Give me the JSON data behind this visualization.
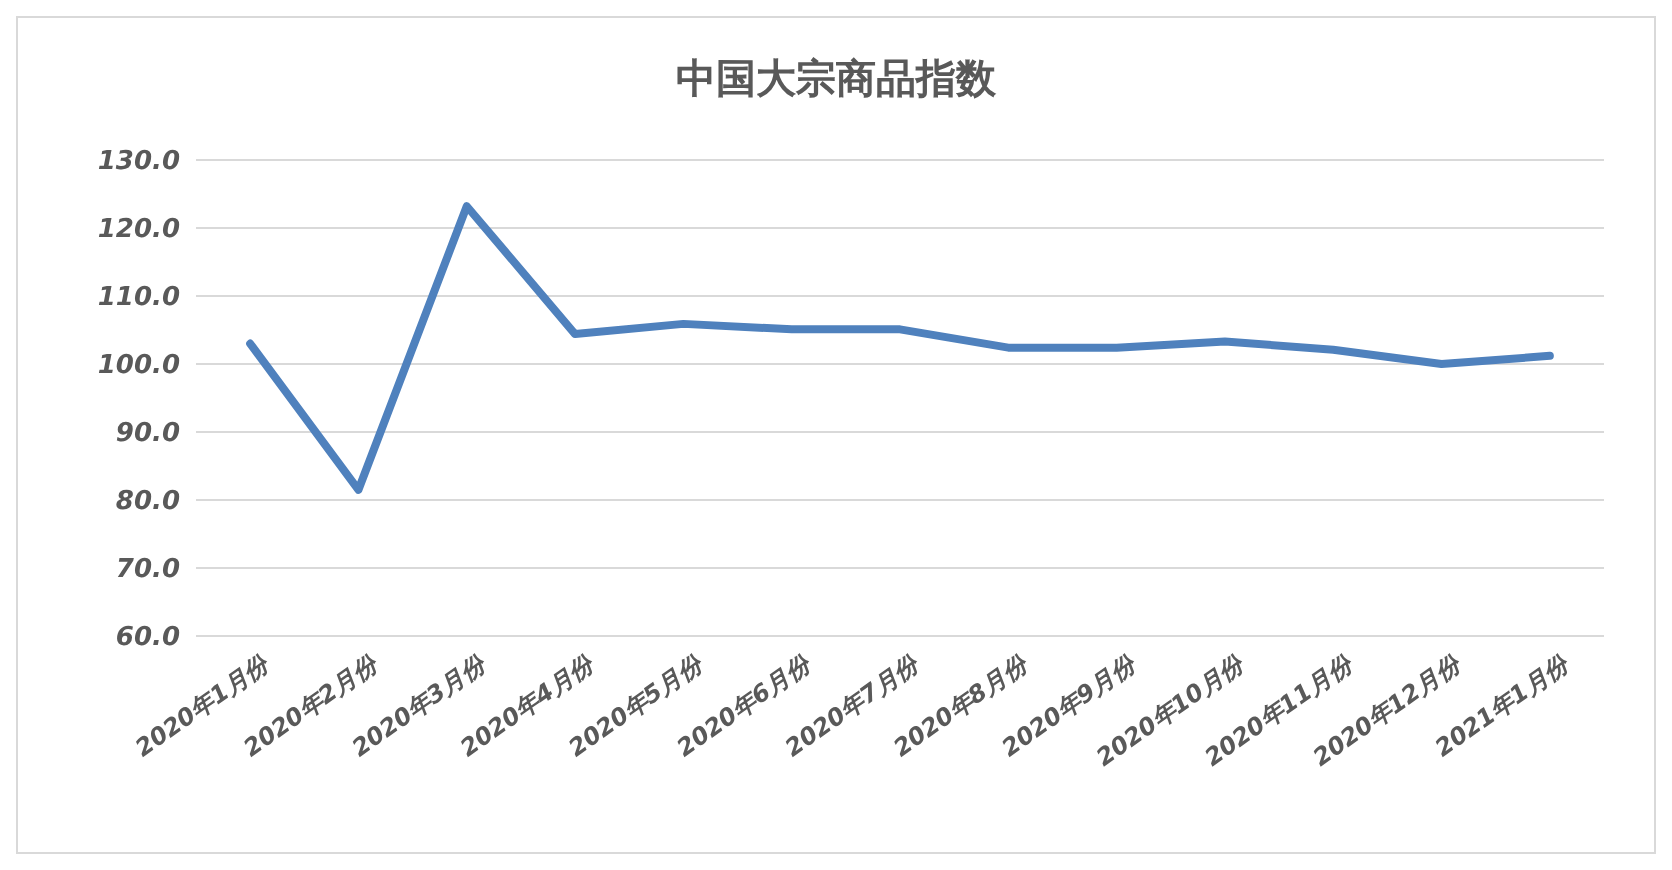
{
  "chart_data": {
    "type": "line",
    "title": "中国大宗商品指数",
    "categories": [
      "2020年1月份",
      "2020年2月份",
      "2020年3月份",
      "2020年4月份",
      "2020年5月份",
      "2020年6月份",
      "2020年7月份",
      "2020年8月份",
      "2020年9月份",
      "2020年10月份",
      "2020年11月份",
      "2020年12月份",
      "2021年1月份"
    ],
    "series": [
      {
        "color": "#4f81bd",
        "values": [
          103.0,
          81.5,
          123.2,
          104.4,
          105.9,
          105.1,
          105.1,
          102.4,
          102.4,
          103.3,
          102.1,
          100.0,
          101.2
        ]
      }
    ],
    "ylim": [
      60,
      130
    ],
    "yticks": [
      {
        "value": 60,
        "label": "60.0"
      },
      {
        "value": 70,
        "label": "70.0"
      },
      {
        "value": 80,
        "label": "80.0"
      },
      {
        "value": 90,
        "label": "90.0"
      },
      {
        "value": 100,
        "label": "100.0"
      },
      {
        "value": 110,
        "label": "110.0"
      },
      {
        "value": 120,
        "label": "120.0"
      },
      {
        "value": 130,
        "label": "130.0"
      }
    ],
    "grid": "y",
    "marker": "none",
    "line_style": "solid"
  }
}
